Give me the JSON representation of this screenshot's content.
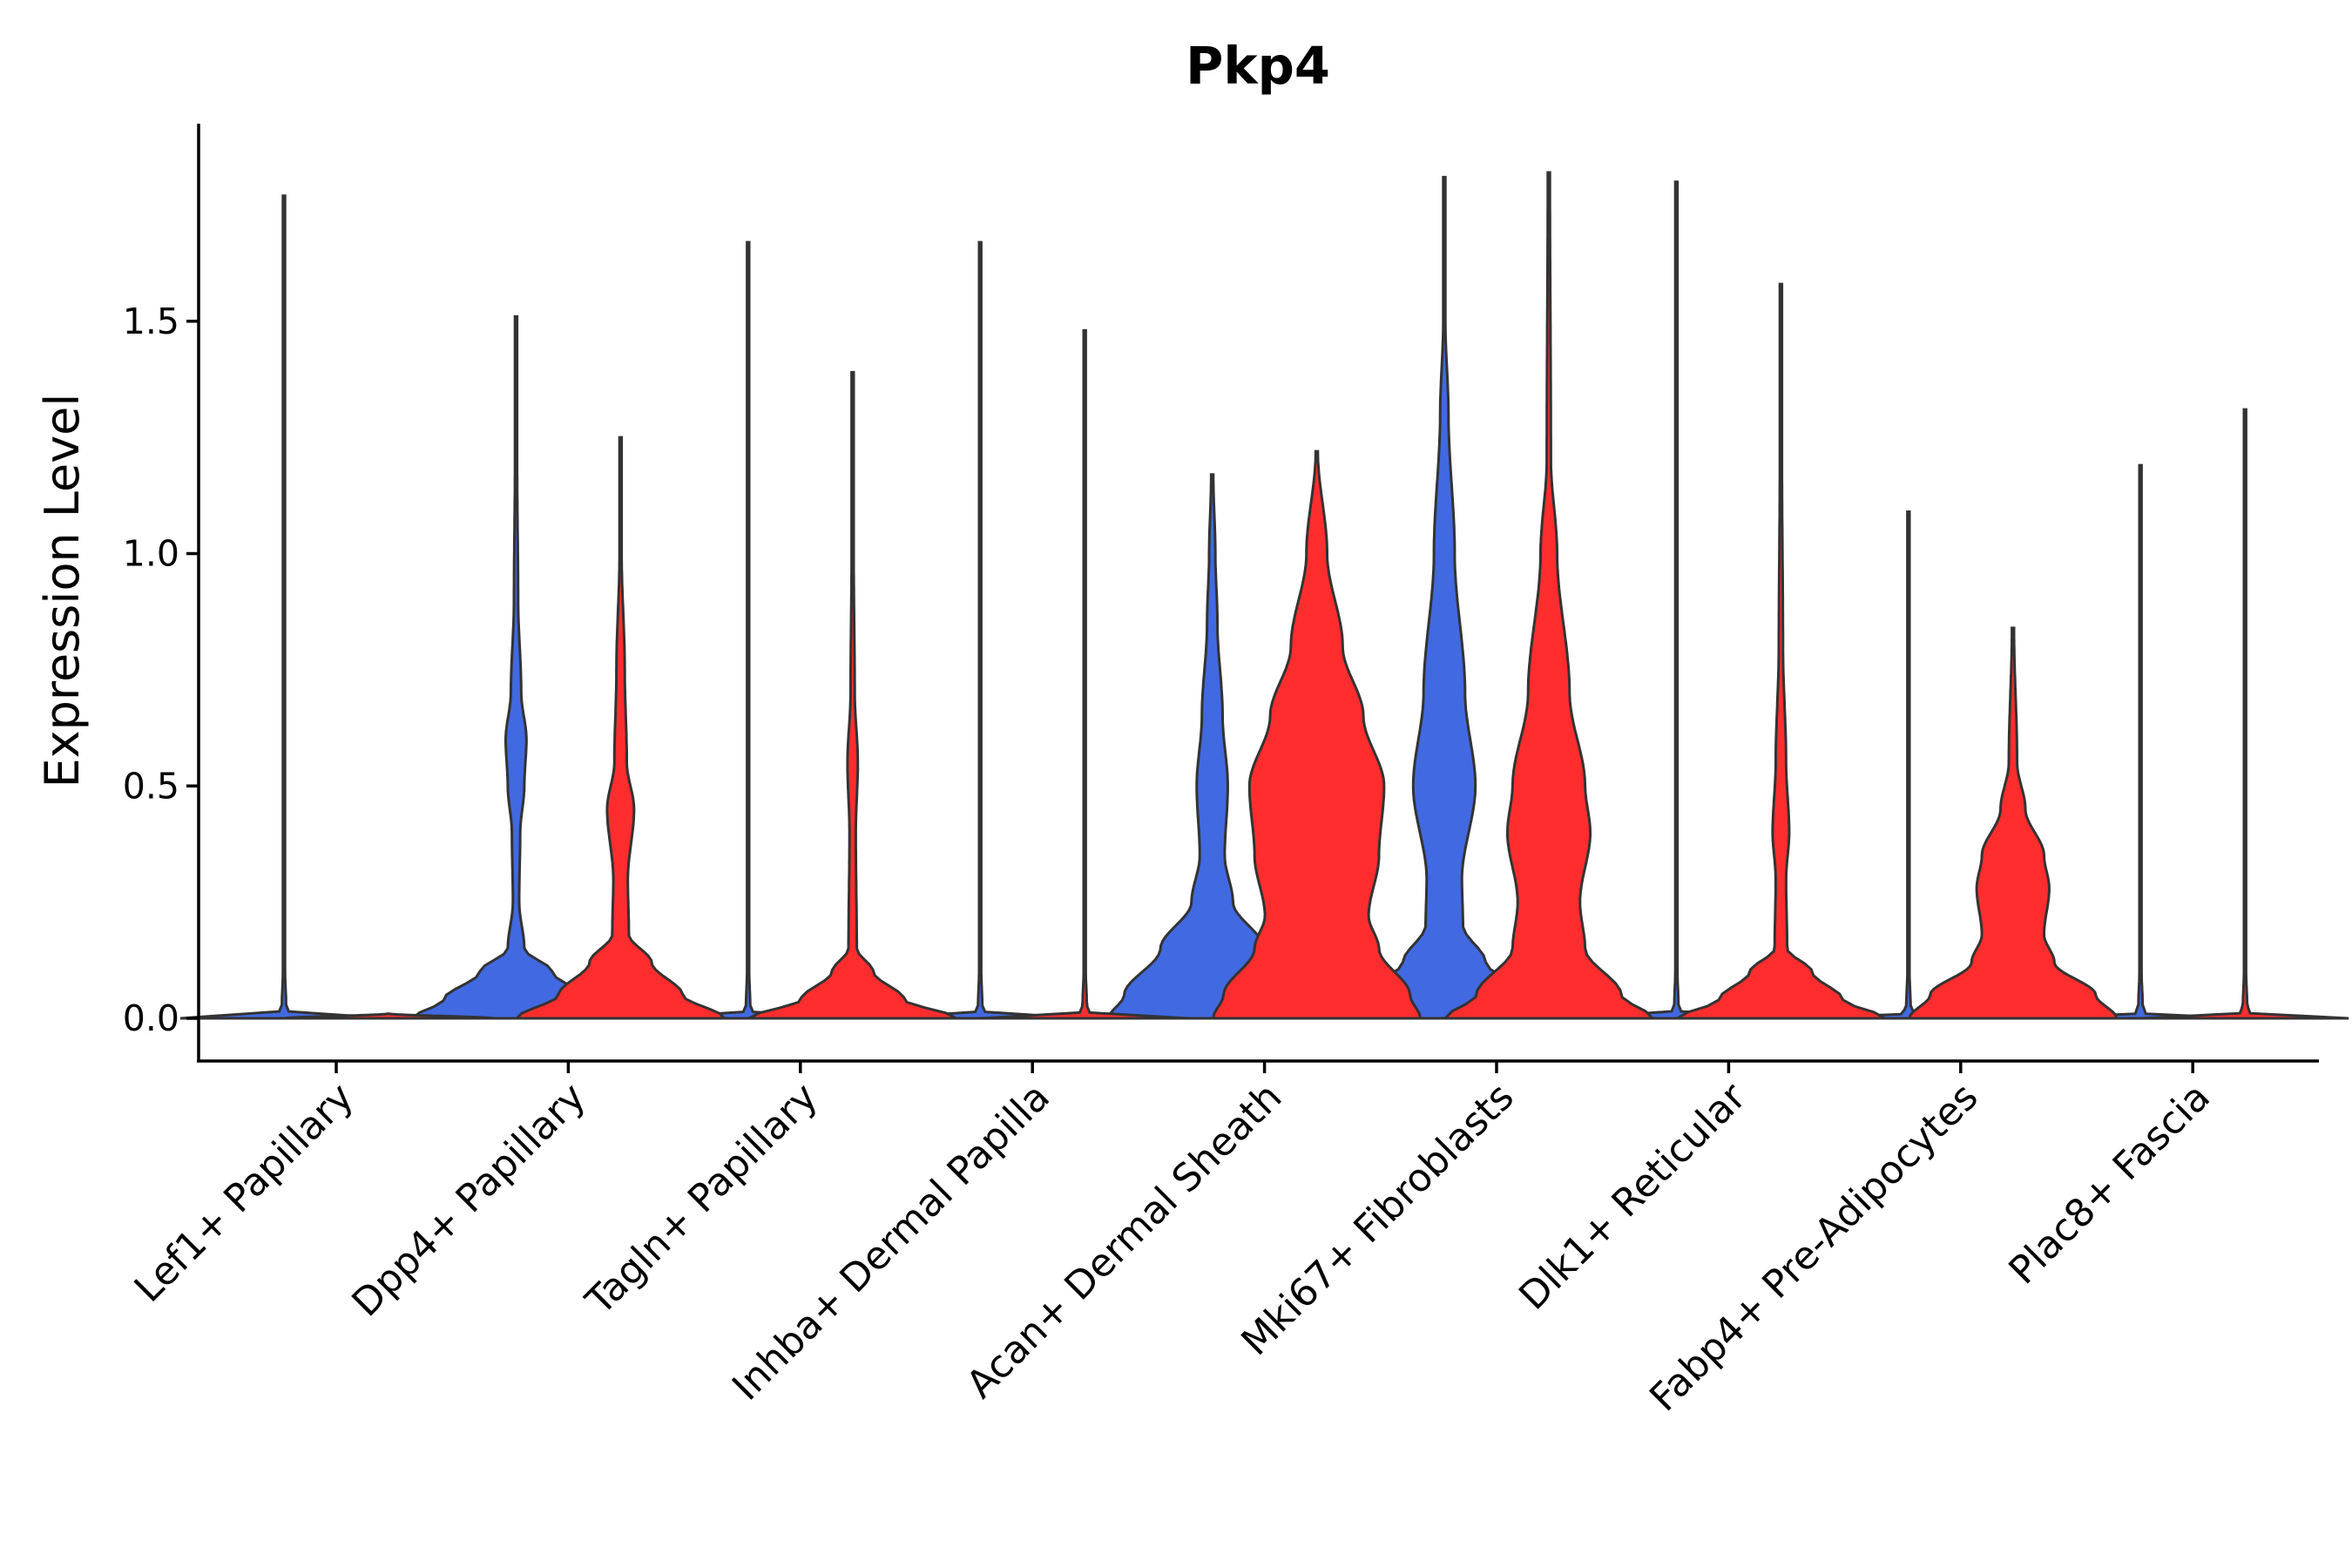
{
  "chart_data": {
    "type": "violin",
    "title": "Pkp4",
    "xlabel": "",
    "ylabel": "Expression Level",
    "ylim": [
      -0.09,
      1.93
    ],
    "yticks": [
      "0.0",
      "0.5",
      "1.0",
      "1.5"
    ],
    "ytick_values": [
      0,
      0.5,
      1.0,
      1.5
    ],
    "categories": [
      "Lef1+ Papillary",
      "Dpp4+ Papillary",
      "Tagln+ Papillary",
      "Inhba+ Dermal Papilla",
      "Acan+ Dermal Sheath",
      "Mki67+ Fibroblasts",
      "Dlk1+ Reticular",
      "Fabp4+ Pre-Adipocytes",
      "Plac8+ Fascia"
    ],
    "colors": {
      "group1": "#4169E1",
      "group2": "#FF2D2D",
      "outline": "#333333"
    },
    "series": [
      {
        "name": "group1",
        "color": "#4169E1",
        "values": [
          {
            "max": 1.77,
            "profile": [
              [
                0,
                1
              ],
              [
                0.01,
                0.05
              ],
              [
                0.03,
                0.02
              ],
              [
                0.1,
                0.01
              ],
              [
                1.77,
                0.01
              ]
            ]
          },
          {
            "max": 1.51,
            "profile": [
              [
                0,
                1
              ],
              [
                0.04,
                0.7
              ],
              [
                0.1,
                0.35
              ],
              [
                0.15,
                0.08
              ],
              [
                0.25,
                0.03
              ],
              [
                0.4,
                0.04
              ],
              [
                0.5,
                0.08
              ],
              [
                0.6,
                0.1
              ],
              [
                0.7,
                0.05
              ],
              [
                0.9,
                0.02
              ],
              [
                1.2,
                0.01
              ],
              [
                1.51,
                0.01
              ]
            ]
          },
          {
            "max": 1.67,
            "profile": [
              [
                0,
                1
              ],
              [
                0.01,
                0.05
              ],
              [
                0.03,
                0.02
              ],
              [
                0.1,
                0.01
              ],
              [
                1.67,
                0.01
              ]
            ]
          },
          {
            "max": 1.67,
            "profile": [
              [
                0,
                1
              ],
              [
                0.01,
                0.05
              ],
              [
                0.03,
                0.02
              ],
              [
                0.1,
                0.01
              ],
              [
                1.67,
                0.01
              ]
            ]
          },
          {
            "max": 1.17,
            "profile": [
              [
                0,
                1
              ],
              [
                0.05,
                0.85
              ],
              [
                0.15,
                0.5
              ],
              [
                0.25,
                0.2
              ],
              [
                0.35,
                0.12
              ],
              [
                0.5,
                0.15
              ],
              [
                0.65,
                0.1
              ],
              [
                0.85,
                0.05
              ],
              [
                1.0,
                0.03
              ],
              [
                1.17,
                0.01
              ]
            ]
          },
          {
            "max": 1.81,
            "profile": [
              [
                0,
                1
              ],
              [
                0.05,
                0.8
              ],
              [
                0.12,
                0.4
              ],
              [
                0.2,
                0.18
              ],
              [
                0.3,
                0.17
              ],
              [
                0.5,
                0.3
              ],
              [
                0.7,
                0.2
              ],
              [
                1.0,
                0.1
              ],
              [
                1.3,
                0.04
              ],
              [
                1.5,
                0.01
              ],
              [
                1.81,
                0.01
              ]
            ]
          },
          {
            "max": 1.8,
            "profile": [
              [
                0,
                1
              ],
              [
                0.01,
                0.05
              ],
              [
                0.03,
                0.02
              ],
              [
                0.1,
                0.01
              ],
              [
                1.8,
                0.01
              ]
            ]
          },
          {
            "max": 1.09,
            "profile": [
              [
                0,
                1
              ],
              [
                0.01,
                0.05
              ],
              [
                0.03,
                0.02
              ],
              [
                0.1,
                0.01
              ],
              [
                1.09,
                0.01
              ]
            ]
          },
          {
            "max": 1.19,
            "profile": [
              [
                0,
                1
              ],
              [
                0.01,
                0.05
              ],
              [
                0.03,
                0.02
              ],
              [
                0.1,
                0.01
              ],
              [
                1.19,
                0.01
              ]
            ]
          }
        ]
      },
      {
        "name": "group2",
        "color": "#FF2D2D",
        "values": [
          {
            "max": 0.01,
            "profile": [
              [
                0,
                1
              ],
              [
                0.01,
                0.01
              ]
            ]
          },
          {
            "max": 1.25,
            "profile": [
              [
                0,
                1
              ],
              [
                0.05,
                0.6
              ],
              [
                0.12,
                0.3
              ],
              [
                0.18,
                0.08
              ],
              [
                0.3,
                0.07
              ],
              [
                0.45,
                0.13
              ],
              [
                0.55,
                0.06
              ],
              [
                0.75,
                0.04
              ],
              [
                1.0,
                0.01
              ],
              [
                1.25,
                0.01
              ]
            ]
          },
          {
            "max": 1.39,
            "profile": [
              [
                0,
                1
              ],
              [
                0.04,
                0.5
              ],
              [
                0.1,
                0.2
              ],
              [
                0.15,
                0.04
              ],
              [
                0.4,
                0.03
              ],
              [
                0.55,
                0.05
              ],
              [
                0.7,
                0.02
              ],
              [
                1.0,
                0.01
              ],
              [
                1.39,
                0.01
              ]
            ]
          },
          {
            "max": 1.48,
            "profile": [
              [
                0,
                1
              ],
              [
                0.01,
                0.05
              ],
              [
                0.03,
                0.02
              ],
              [
                0.1,
                0.01
              ],
              [
                1.48,
                0.01
              ]
            ]
          },
          {
            "max": 1.22,
            "profile": [
              [
                0,
                1
              ],
              [
                0.05,
                0.9
              ],
              [
                0.15,
                0.6
              ],
              [
                0.22,
                0.5
              ],
              [
                0.35,
                0.6
              ],
              [
                0.5,
                0.65
              ],
              [
                0.65,
                0.45
              ],
              [
                0.8,
                0.25
              ],
              [
                1.0,
                0.1
              ],
              [
                1.22,
                0.01
              ]
            ]
          },
          {
            "max": 1.82,
            "profile": [
              [
                0,
                1
              ],
              [
                0.05,
                0.7
              ],
              [
                0.15,
                0.35
              ],
              [
                0.25,
                0.3
              ],
              [
                0.4,
                0.4
              ],
              [
                0.5,
                0.35
              ],
              [
                0.7,
                0.2
              ],
              [
                1.0,
                0.08
              ],
              [
                1.2,
                0.02
              ],
              [
                1.82,
                0.01
              ]
            ]
          },
          {
            "max": 1.58,
            "profile": [
              [
                0,
                1
              ],
              [
                0.04,
                0.6
              ],
              [
                0.1,
                0.3
              ],
              [
                0.15,
                0.06
              ],
              [
                0.3,
                0.05
              ],
              [
                0.4,
                0.08
              ],
              [
                0.55,
                0.05
              ],
              [
                0.8,
                0.02
              ],
              [
                1.2,
                0.01
              ],
              [
                1.58,
                0.01
              ]
            ]
          },
          {
            "max": 0.84,
            "profile": [
              [
                0,
                1
              ],
              [
                0.05,
                0.8
              ],
              [
                0.12,
                0.4
              ],
              [
                0.18,
                0.3
              ],
              [
                0.28,
                0.35
              ],
              [
                0.35,
                0.3
              ],
              [
                0.45,
                0.12
              ],
              [
                0.55,
                0.04
              ],
              [
                0.84,
                0.01
              ]
            ]
          },
          {
            "max": 1.31,
            "profile": [
              [
                0,
                1
              ],
              [
                0.01,
                0.05
              ],
              [
                0.03,
                0.02
              ],
              [
                0.1,
                0.01
              ],
              [
                1.31,
                0.01
              ]
            ]
          }
        ]
      }
    ]
  }
}
